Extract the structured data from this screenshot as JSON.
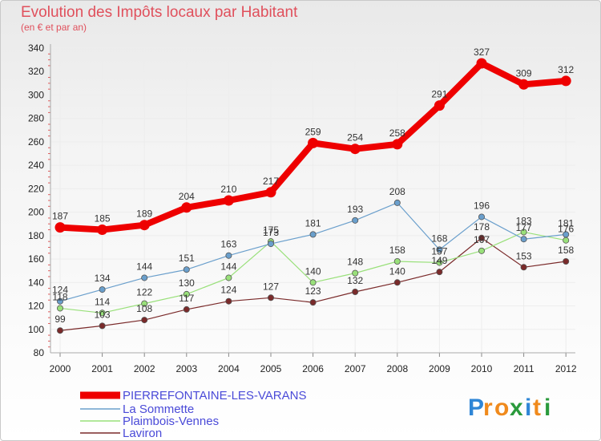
{
  "chart_data": {
    "type": "line",
    "title": "Evolution des Impôts locaux par Habitant",
    "subtitle": "(en € et par an)",
    "x": [
      "2000",
      "2001",
      "2002",
      "2003",
      "2004",
      "2005",
      "2006",
      "2007",
      "2008",
      "2009",
      "2010",
      "2011",
      "2012"
    ],
    "ylim": [
      80,
      340
    ],
    "yticks": [
      80,
      100,
      120,
      140,
      160,
      180,
      200,
      220,
      240,
      260,
      280,
      300,
      320,
      340
    ],
    "grid": true,
    "legend_position": "bottom-left",
    "series": [
      {
        "name": "PIERREFONTAINE-LES-VARANS",
        "color": "#ee0000",
        "values": [
          187,
          185,
          189,
          204,
          210,
          217,
          259,
          254,
          258,
          291,
          327,
          309,
          312
        ]
      },
      {
        "name": "La Sommette",
        "color": "#6a9fcc",
        "values": [
          124,
          134,
          144,
          151,
          163,
          173,
          181,
          193,
          208,
          168,
          196,
          177,
          181
        ]
      },
      {
        "name": "Plaimbois-Vennes",
        "color": "#99e07a",
        "values": [
          118,
          114,
          122,
          130,
          144,
          175,
          140,
          148,
          158,
          157,
          167,
          183,
          176
        ]
      },
      {
        "name": "Laviron",
        "color": "#7a2a2a",
        "values": [
          99,
          103,
          108,
          117,
          124,
          127,
          123,
          132,
          140,
          149,
          178,
          153,
          158
        ]
      }
    ]
  },
  "logo": {
    "text": "Proxiti",
    "letters": [
      "P",
      "r",
      "o",
      "x",
      "i",
      "t",
      "i"
    ],
    "colors": [
      "#2f86d6",
      "#f08a1c",
      "#f08a1c",
      "#2a9a3c",
      "#2f86d6",
      "#f08a1c",
      "#2a9a3c"
    ]
  }
}
